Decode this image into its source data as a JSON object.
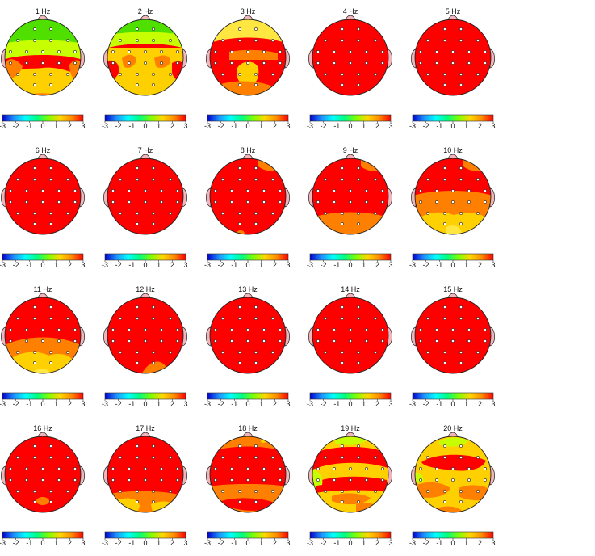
{
  "figure": {
    "panels": [
      {
        "title": "1 Hz",
        "pattern": "p1"
      },
      {
        "title": "2 Hz",
        "pattern": "p2"
      },
      {
        "title": "3 Hz",
        "pattern": "p3"
      },
      {
        "title": "4 Hz",
        "pattern": "red"
      },
      {
        "title": "5 Hz",
        "pattern": "red"
      },
      {
        "title": "6 Hz",
        "pattern": "red"
      },
      {
        "title": "7 Hz",
        "pattern": "red"
      },
      {
        "title": "8 Hz",
        "pattern": "p8"
      },
      {
        "title": "9 Hz",
        "pattern": "p9"
      },
      {
        "title": "10 Hz",
        "pattern": "p10"
      },
      {
        "title": "11 Hz",
        "pattern": "p11"
      },
      {
        "title": "12 Hz",
        "pattern": "p12"
      },
      {
        "title": "13 Hz",
        "pattern": "red"
      },
      {
        "title": "14 Hz",
        "pattern": "red"
      },
      {
        "title": "15 Hz",
        "pattern": "red"
      },
      {
        "title": "16 Hz",
        "pattern": "p16"
      },
      {
        "title": "17 Hz",
        "pattern": "p17"
      },
      {
        "title": "18 Hz",
        "pattern": "p18"
      },
      {
        "title": "19 Hz",
        "pattern": "p19"
      },
      {
        "title": "20 Hz",
        "pattern": "p20"
      }
    ],
    "colorbar": {
      "ticks": [
        "-3",
        "-2",
        "-1",
        "0",
        "1",
        "2",
        "3"
      ],
      "colors": [
        "#0000cd",
        "#1e90ff",
        "#00ffff",
        "#00ff7f",
        "#7fff00",
        "#ffd700",
        "#ff8c00",
        "#ff0000"
      ]
    },
    "palette": {
      "red": "#ff0000",
      "orange": "#ff8000",
      "gold": "#ffd000",
      "yellow": "#ffe640",
      "lime": "#c8ff00",
      "green": "#50e000"
    }
  }
}
